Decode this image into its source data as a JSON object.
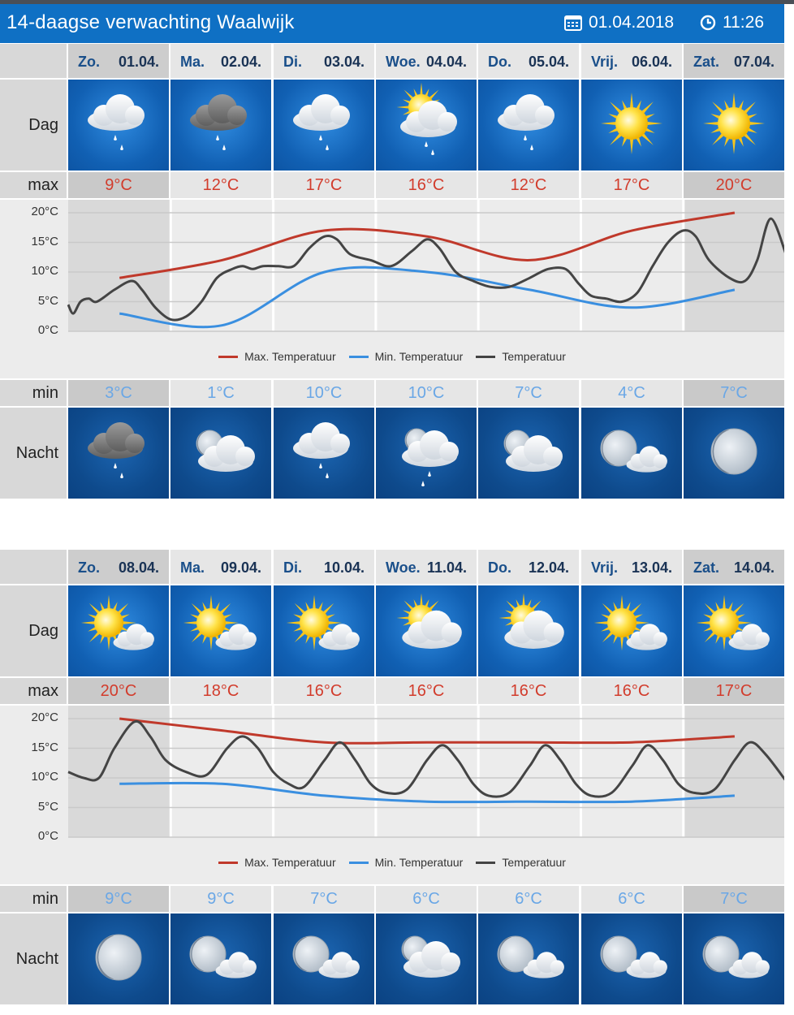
{
  "header": {
    "title": "14-daagse verwachting Waalwijk",
    "date": "01.04.2018",
    "time": "11:26"
  },
  "labels": {
    "dag": "Dag",
    "max": "max",
    "min": "min",
    "nacht": "Nacht"
  },
  "legend": {
    "max": "Max. Temperatuur",
    "min": "Min. Temperatuur",
    "temp": "Temperatuur"
  },
  "colors": {
    "max": "#c0392b",
    "min": "#3a8fe0",
    "temp": "#444444"
  },
  "weeks": [
    {
      "days": [
        {
          "dn": "Zo.",
          "dd": "01.04.",
          "max": "9°C",
          "min": "3°C",
          "day_icon": "cloud-rain-icon",
          "night_icon": "cloud-dark-rain-icon",
          "weekend": true
        },
        {
          "dn": "Ma.",
          "dd": "02.04.",
          "max": "12°C",
          "min": "1°C",
          "day_icon": "cloud-dark-rain-icon",
          "night_icon": "moon-cloud-icon",
          "weekend": false
        },
        {
          "dn": "Di.",
          "dd": "03.04.",
          "max": "17°C",
          "min": "10°C",
          "day_icon": "cloud-rain-icon",
          "night_icon": "cloud-rain-icon",
          "weekend": false
        },
        {
          "dn": "Woe.",
          "dd": "04.04.",
          "max": "16°C",
          "min": "10°C",
          "day_icon": "sun-cloud-rain-icon",
          "night_icon": "moon-cloud-rain-icon",
          "weekend": false
        },
        {
          "dn": "Do.",
          "dd": "05.04.",
          "max": "12°C",
          "min": "7°C",
          "day_icon": "cloud-rain-icon",
          "night_icon": "moon-cloud-icon",
          "weekend": false
        },
        {
          "dn": "Vrij.",
          "dd": "06.04.",
          "max": "17°C",
          "min": "4°C",
          "day_icon": "sun-icon",
          "night_icon": "moon-small-cloud-icon",
          "weekend": false
        },
        {
          "dn": "Zat.",
          "dd": "07.04.",
          "max": "20°C",
          "min": "7°C",
          "day_icon": "sun-icon",
          "night_icon": "moon-icon",
          "weekend": true
        }
      ],
      "chart_data": {
        "type": "line",
        "yticks": [
          "20°C",
          "15°C",
          "10°C",
          "5°C",
          "0°C"
        ],
        "ylim": [
          0,
          20
        ],
        "series": [
          {
            "name": "Max. Temperatuur",
            "x": [
              0.5,
              1.5,
              2.5,
              3.5,
              4.5,
              5.5,
              6.5
            ],
            "values": [
              9,
              12,
              17,
              16,
              12,
              17,
              20
            ]
          },
          {
            "name": "Min. Temperatuur",
            "x": [
              0.5,
              1.5,
              2.5,
              3.5,
              4.5,
              5.5,
              6.5
            ],
            "values": [
              3,
              1,
              10,
              10,
              7,
              4,
              7
            ]
          },
          {
            "name": "Temperatuur",
            "x": [
              0,
              0.05,
              0.12,
              0.2,
              0.28,
              0.45,
              0.62,
              0.72,
              0.85,
              1.0,
              1.15,
              1.3,
              1.45,
              1.6,
              1.7,
              1.8,
              1.9,
              2.05,
              2.2,
              2.35,
              2.5,
              2.62,
              2.75,
              2.95,
              3.15,
              3.35,
              3.5,
              3.62,
              3.78,
              3.95,
              4.12,
              4.3,
              4.5,
              4.68,
              4.85,
              4.98,
              5.1,
              5.25,
              5.4,
              5.55,
              5.7,
              5.85,
              6.0,
              6.12,
              6.25,
              6.45,
              6.6,
              6.72,
              6.85,
              7.0
            ],
            "values": [
              4.5,
              3,
              5,
              5.5,
              5,
              7,
              8.5,
              7,
              4,
              2,
              2.5,
              5,
              9,
              10.5,
              11,
              10.5,
              11,
              11,
              11,
              14,
              16,
              15.5,
              13,
              12,
              11,
              13.5,
              15.5,
              14,
              10,
              8.5,
              7.5,
              7.5,
              9,
              10.5,
              10.5,
              8,
              6,
              5.5,
              5,
              6.5,
              11,
              15,
              17,
              16,
              12,
              9,
              8.5,
              12,
              19,
              13
            ]
          }
        ]
      }
    },
    {
      "days": [
        {
          "dn": "Zo.",
          "dd": "08.04.",
          "max": "20°C",
          "min": "9°C",
          "day_icon": "sun-cloud-icon",
          "night_icon": "moon-icon",
          "weekend": true
        },
        {
          "dn": "Ma.",
          "dd": "09.04.",
          "max": "18°C",
          "min": "9°C",
          "day_icon": "sun-cloud-icon",
          "night_icon": "moon-small-cloud-icon",
          "weekend": false
        },
        {
          "dn": "Di.",
          "dd": "10.04.",
          "max": "16°C",
          "min": "7°C",
          "day_icon": "sun-cloud-icon",
          "night_icon": "moon-small-cloud-icon",
          "weekend": false
        },
        {
          "dn": "Woe.",
          "dd": "11.04.",
          "max": "16°C",
          "min": "6°C",
          "day_icon": "sun-big-cloud-icon",
          "night_icon": "moon-cloud-icon",
          "weekend": false
        },
        {
          "dn": "Do.",
          "dd": "12.04.",
          "max": "16°C",
          "min": "6°C",
          "day_icon": "sun-big-cloud-icon",
          "night_icon": "moon-small-cloud-icon",
          "weekend": false
        },
        {
          "dn": "Vrij.",
          "dd": "13.04.",
          "max": "16°C",
          "min": "6°C",
          "day_icon": "sun-cloud-icon",
          "night_icon": "moon-small-cloud-icon",
          "weekend": false
        },
        {
          "dn": "Zat.",
          "dd": "14.04.",
          "max": "17°C",
          "min": "7°C",
          "day_icon": "sun-cloud-icon",
          "night_icon": "moon-small-cloud-icon",
          "weekend": true
        }
      ],
      "chart_data": {
        "type": "line",
        "yticks": [
          "20°C",
          "15°C",
          "10°C",
          "5°C",
          "0°C"
        ],
        "ylim": [
          0,
          20
        ],
        "series": [
          {
            "name": "Max. Temperatuur",
            "x": [
              0.5,
              1.5,
              2.5,
              3.5,
              4.5,
              5.5,
              6.5
            ],
            "values": [
              20,
              18,
              16,
              16,
              16,
              16,
              17
            ]
          },
          {
            "name": "Min. Temperatuur",
            "x": [
              0.5,
              1.5,
              2.5,
              3.5,
              4.5,
              5.5,
              6.5
            ],
            "values": [
              9,
              9,
              7,
              6,
              6,
              6,
              7
            ]
          },
          {
            "name": "Temperatuur",
            "x": [
              0,
              0.15,
              0.3,
              0.45,
              0.65,
              0.8,
              0.95,
              1.15,
              1.35,
              1.55,
              1.7,
              1.85,
              2.0,
              2.15,
              2.3,
              2.5,
              2.65,
              2.8,
              2.95,
              3.1,
              3.3,
              3.5,
              3.65,
              3.8,
              3.95,
              4.1,
              4.3,
              4.5,
              4.65,
              4.8,
              4.95,
              5.1,
              5.3,
              5.5,
              5.65,
              5.8,
              5.95,
              6.1,
              6.3,
              6.5,
              6.65,
              6.8,
              7.0
            ],
            "values": [
              11,
              10,
              10,
              15,
              19.5,
              17,
              13,
              11,
              10.5,
              15,
              17,
              15,
              11,
              9,
              8.5,
              13,
              16,
              13,
              9,
              7.5,
              8,
              13,
              15.5,
              13,
              9,
              7,
              7.5,
              12,
              15.5,
              13,
              9,
              7,
              7.5,
              12,
              15.5,
              13,
              9,
              7.5,
              8,
              13,
              16,
              14,
              9.5
            ]
          }
        ]
      }
    }
  ]
}
